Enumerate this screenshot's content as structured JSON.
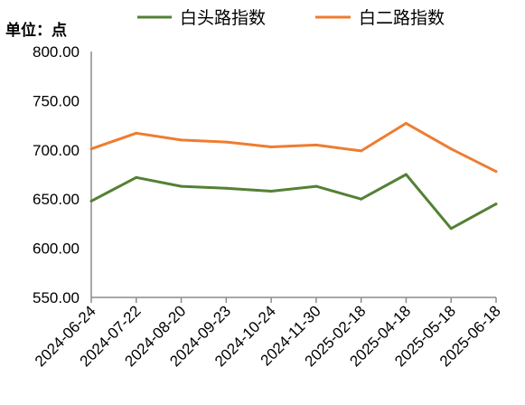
{
  "chart_data": {
    "type": "line",
    "unit_label": "单位：点",
    "categories": [
      "2024-06-24",
      "2024-07-22",
      "2024-08-20",
      "2024-09-23",
      "2024-10-24",
      "2024-11-30",
      "2025-02-18",
      "2025-04-18",
      "2025-05-18",
      "2025-06-18"
    ],
    "series": [
      {
        "name": "白头路指数",
        "color": "#538135",
        "values": [
          648,
          672,
          663,
          661,
          658,
          663,
          650,
          675,
          620,
          645
        ]
      },
      {
        "name": "白二路指数",
        "color": "#ed7d31",
        "values": [
          701,
          717,
          710,
          708,
          703,
          705,
          699,
          727,
          701,
          678
        ]
      }
    ],
    "yticks": [
      "550.00",
      "600.00",
      "650.00",
      "700.00",
      "750.00",
      "800.00"
    ],
    "ylim": [
      550,
      800
    ],
    "grid": false,
    "legend_position": "top"
  }
}
